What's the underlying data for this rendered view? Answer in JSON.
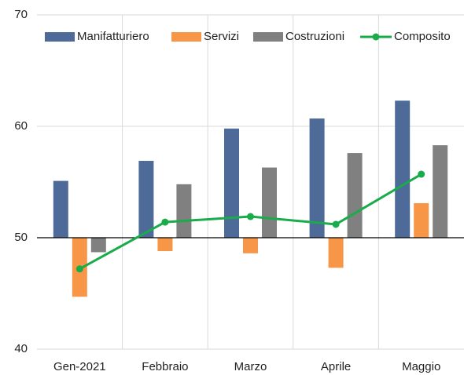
{
  "chart_data": {
    "type": "bar_line",
    "categories": [
      "Gen-2021",
      "Febbraio",
      "Marzo",
      "Aprile",
      "Maggio"
    ],
    "series": [
      {
        "name": "Manifatturiero",
        "type": "bar",
        "color": "#4e6a99",
        "values": [
          55.1,
          56.9,
          59.8,
          60.7,
          62.3
        ]
      },
      {
        "name": "Servizi",
        "type": "bar",
        "color": "#f79646",
        "values": [
          44.7,
          48.8,
          48.6,
          47.3,
          53.1
        ]
      },
      {
        "name": "Costruzioni",
        "type": "bar",
        "color": "#808080",
        "values": [
          48.7,
          54.8,
          56.3,
          57.6,
          58.3
        ]
      },
      {
        "name": "Composito",
        "type": "line",
        "color": "#1aab4b",
        "values": [
          47.2,
          51.4,
          51.9,
          51.2,
          55.7
        ]
      }
    ],
    "ylim": [
      40,
      70
    ],
    "yticks": [
      40,
      50,
      60,
      70
    ],
    "bar_base": 50,
    "grid": true,
    "legend": "top"
  }
}
